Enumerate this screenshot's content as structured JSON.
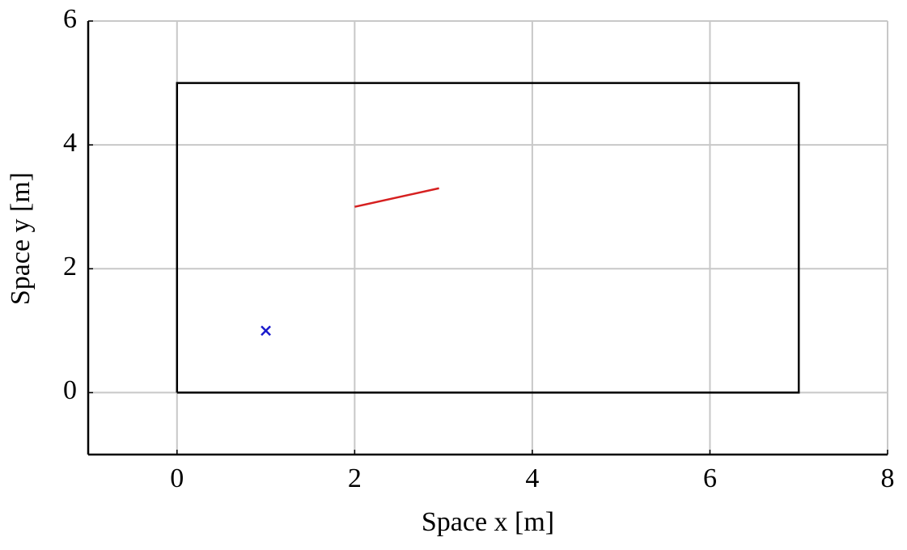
{
  "chart_data": {
    "type": "line",
    "xlabel": "Space x [m]",
    "ylabel": "Space y [m]",
    "xlim": [
      -1,
      8
    ],
    "ylim": [
      -1,
      6
    ],
    "xticks": [
      0,
      2,
      4,
      6,
      8
    ],
    "yticks": [
      0,
      2,
      4,
      6
    ],
    "grid": true,
    "series": [
      {
        "color": "#000000",
        "style": "line",
        "x": [
          0,
          7,
          7,
          0,
          0
        ],
        "values": [
          0,
          0,
          5,
          5,
          0
        ]
      },
      {
        "color": "#d62020",
        "style": "line",
        "x": [
          2,
          2.95
        ],
        "values": [
          3,
          3.3
        ]
      },
      {
        "color": "#1a1acc",
        "style": "marker",
        "x": [
          1
        ],
        "values": [
          1
        ]
      }
    ]
  }
}
